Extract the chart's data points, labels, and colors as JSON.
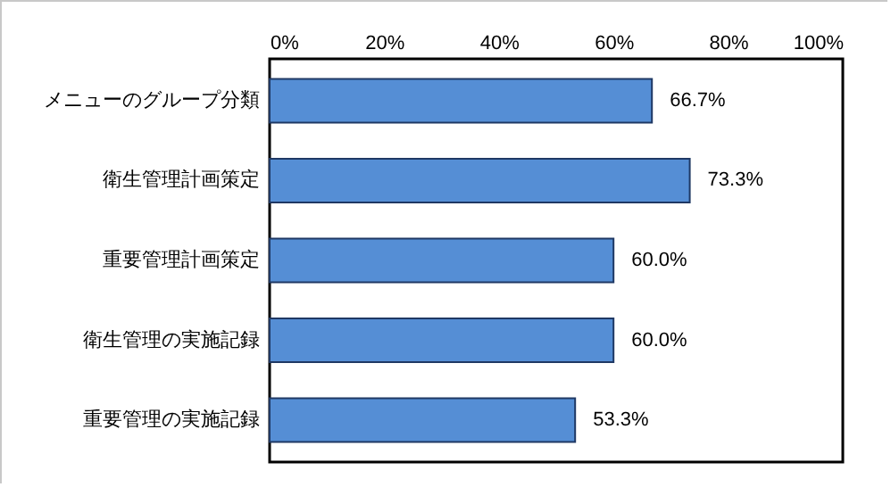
{
  "chart_data": {
    "type": "bar",
    "orientation": "horizontal",
    "categories": [
      "メニューのグループ分類",
      "衛生管理計画策定",
      "重要管理計画策定",
      "衛生管理の実施記録",
      "重要管理の実施記録"
    ],
    "values": [
      66.7,
      73.3,
      60.0,
      60.0,
      53.3
    ],
    "value_labels": [
      "66.7%",
      "73.3%",
      "60.0%",
      "60.0%",
      "53.3%"
    ],
    "color": "#558ed5",
    "xlim": [
      0,
      100
    ],
    "xticks": [
      {
        "value": 0,
        "label": "0%"
      },
      {
        "value": 20,
        "label": "20%"
      },
      {
        "value": 40,
        "label": "40%"
      },
      {
        "value": 60,
        "label": "60%"
      },
      {
        "value": 80,
        "label": "80%"
      },
      {
        "value": 100,
        "label": "100%"
      }
    ],
    "grid": false
  }
}
